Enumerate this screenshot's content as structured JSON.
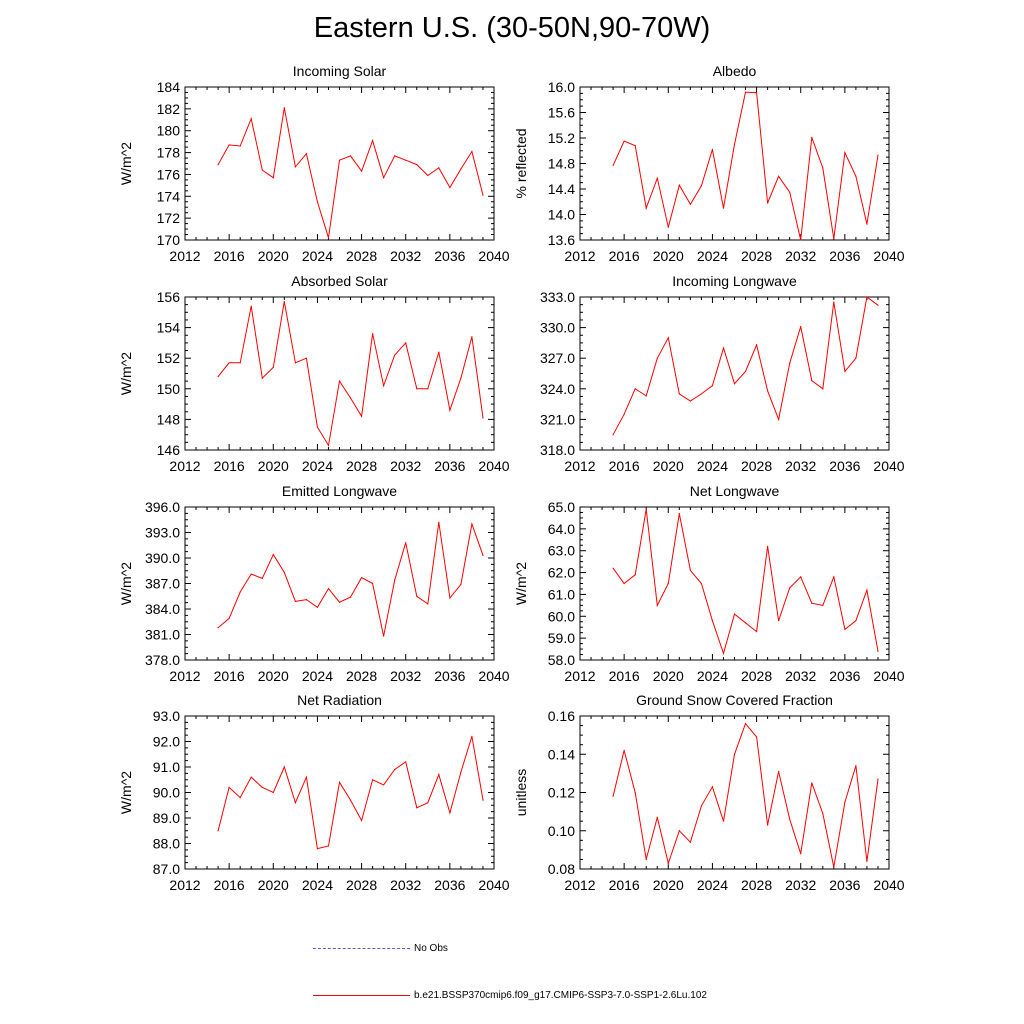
{
  "title": "Eastern U.S. (30-50N,90-70W)",
  "colors": {
    "series": "#ff0000",
    "obs": "#5a5ad2",
    "axis": "#000000"
  },
  "chart_data": [
    {
      "type": "line",
      "title": "Incoming Solar",
      "ylabel": "W/m^2",
      "xlim": [
        2012,
        2040
      ],
      "xticks": [
        2012,
        2016,
        2020,
        2024,
        2028,
        2032,
        2036,
        2040
      ],
      "ylim": [
        170,
        184
      ],
      "yticks": [
        170,
        172,
        174,
        176,
        178,
        180,
        182,
        184
      ],
      "ytick_decimals": 0,
      "ytick_labels": [
        "170",
        "172",
        "174",
        "176",
        "178",
        "180",
        "182",
        "184"
      ],
      "x": [
        2015,
        2016,
        2017,
        2018,
        2019,
        2020,
        2021,
        2022,
        2023,
        2024,
        2025,
        2026,
        2027,
        2028,
        2029,
        2030,
        2031,
        2032,
        2033,
        2034,
        2035,
        2036,
        2037,
        2038,
        2039
      ],
      "y": [
        176.9,
        178.7,
        178.6,
        181.1,
        176.4,
        175.7,
        182.1,
        176.7,
        177.9,
        173.5,
        170.2,
        177.3,
        177.7,
        176.3,
        179.1,
        175.7,
        177.7,
        177.3,
        176.9,
        175.9,
        176.6,
        174.8,
        176.5,
        178.1,
        174.1
      ]
    },
    {
      "type": "line",
      "title": "Albedo",
      "ylabel": "% reflected",
      "xlim": [
        2012,
        2040
      ],
      "xticks": [
        2012,
        2016,
        2020,
        2024,
        2028,
        2032,
        2036,
        2040
      ],
      "ylim": [
        13.6,
        16.0
      ],
      "yticks": [
        13.6,
        14.0,
        14.4,
        14.8,
        15.2,
        15.6,
        16.0
      ],
      "ytick_decimals": 1,
      "ytick_labels": [
        "13.6",
        "14.0",
        "14.4",
        "14.8",
        "15.2",
        "15.6",
        "16.0"
      ],
      "x": [
        2015,
        2016,
        2017,
        2018,
        2019,
        2020,
        2021,
        2022,
        2023,
        2024,
        2025,
        2026,
        2027,
        2028,
        2029,
        2030,
        2031,
        2032,
        2033,
        2034,
        2035,
        2036,
        2037,
        2038,
        2039
      ],
      "y": [
        14.77,
        15.15,
        15.08,
        14.1,
        14.57,
        13.8,
        14.46,
        14.16,
        14.45,
        15.02,
        14.1,
        15.1,
        15.92,
        15.91,
        14.18,
        14.6,
        14.35,
        13.6,
        15.21,
        14.73,
        13.62,
        14.97,
        14.6,
        13.85,
        14.93
      ]
    },
    {
      "type": "line",
      "title": "Absorbed Solar",
      "ylabel": "W/m^2",
      "xlim": [
        2012,
        2040
      ],
      "xticks": [
        2012,
        2016,
        2020,
        2024,
        2028,
        2032,
        2036,
        2040
      ],
      "ylim": [
        146,
        156
      ],
      "yticks": [
        146,
        148,
        150,
        152,
        154,
        156
      ],
      "ytick_decimals": 0,
      "ytick_labels": [
        "146",
        "148",
        "150",
        "152",
        "154",
        "156"
      ],
      "x": [
        2015,
        2016,
        2017,
        2018,
        2019,
        2020,
        2021,
        2022,
        2023,
        2024,
        2025,
        2026,
        2027,
        2028,
        2029,
        2030,
        2031,
        2032,
        2033,
        2034,
        2035,
        2036,
        2037,
        2038,
        2039
      ],
      "y": [
        150.8,
        151.7,
        151.7,
        155.4,
        150.7,
        151.4,
        155.7,
        151.7,
        152.0,
        147.5,
        146.3,
        150.5,
        149.4,
        148.2,
        153.6,
        150.2,
        152.2,
        153.0,
        150.0,
        150.0,
        152.4,
        148.6,
        150.7,
        153.4,
        148.1
      ]
    },
    {
      "type": "line",
      "title": "Incoming Longwave",
      "ylabel": "",
      "xlim": [
        2012,
        2040
      ],
      "xticks": [
        2012,
        2016,
        2020,
        2024,
        2028,
        2032,
        2036,
        2040
      ],
      "ylim": [
        318,
        333
      ],
      "yticks": [
        318,
        321,
        324,
        327,
        330,
        333
      ],
      "ytick_decimals": 1,
      "ytick_labels": [
        "318.0",
        "321.0",
        "324.0",
        "327.0",
        "330.0",
        "333.0"
      ],
      "x": [
        2015,
        2016,
        2017,
        2018,
        2019,
        2020,
        2021,
        2022,
        2023,
        2024,
        2025,
        2026,
        2027,
        2028,
        2029,
        2030,
        2031,
        2032,
        2033,
        2034,
        2035,
        2036,
        2037,
        2038,
        2039
      ],
      "y": [
        319.5,
        321.5,
        324.0,
        323.3,
        327.0,
        329.0,
        323.5,
        322.8,
        323.5,
        324.3,
        328.0,
        324.5,
        325.7,
        328.3,
        323.8,
        321.0,
        326.5,
        330.1,
        324.8,
        324.0,
        332.5,
        325.7,
        327.0,
        333.0,
        332.2
      ]
    },
    {
      "type": "line",
      "title": "Emitted Longwave",
      "ylabel": "W/m^2",
      "xlim": [
        2012,
        2040
      ],
      "xticks": [
        2012,
        2016,
        2020,
        2024,
        2028,
        2032,
        2036,
        2040
      ],
      "ylim": [
        378,
        396
      ],
      "yticks": [
        378,
        381,
        384,
        387,
        390,
        393,
        396
      ],
      "ytick_decimals": 1,
      "ytick_labels": [
        "378.0",
        "381.0",
        "384.0",
        "387.0",
        "390.0",
        "393.0",
        "396.0"
      ],
      "x": [
        2015,
        2016,
        2017,
        2018,
        2019,
        2020,
        2021,
        2022,
        2023,
        2024,
        2025,
        2026,
        2027,
        2028,
        2029,
        2030,
        2031,
        2032,
        2033,
        2034,
        2035,
        2036,
        2037,
        2038,
        2039
      ],
      "y": [
        381.8,
        382.9,
        386.0,
        388.1,
        387.6,
        390.4,
        388.3,
        384.9,
        385.1,
        384.2,
        386.4,
        384.8,
        385.4,
        387.7,
        387.0,
        380.8,
        387.4,
        391.8,
        385.5,
        384.6,
        394.2,
        385.3,
        386.9,
        394.0,
        390.3
      ]
    },
    {
      "type": "line",
      "title": "Net Longwave",
      "ylabel": "W/m^2",
      "xlim": [
        2012,
        2040
      ],
      "xticks": [
        2012,
        2016,
        2020,
        2024,
        2028,
        2032,
        2036,
        2040
      ],
      "ylim": [
        58,
        65
      ],
      "yticks": [
        58,
        59,
        60,
        61,
        62,
        63,
        64,
        65
      ],
      "ytick_decimals": 1,
      "ytick_labels": [
        "58.0",
        "59.0",
        "60.0",
        "61.0",
        "62.0",
        "63.0",
        "64.0",
        "65.0"
      ],
      "x": [
        2015,
        2016,
        2017,
        2018,
        2019,
        2020,
        2021,
        2022,
        2023,
        2024,
        2025,
        2026,
        2027,
        2028,
        2029,
        2030,
        2031,
        2032,
        2033,
        2034,
        2035,
        2036,
        2037,
        2038,
        2039
      ],
      "y": [
        62.2,
        61.5,
        61.9,
        64.9,
        60.5,
        61.5,
        64.7,
        62.1,
        61.5,
        59.8,
        58.3,
        60.1,
        59.7,
        59.3,
        63.2,
        59.8,
        61.3,
        61.8,
        60.6,
        60.5,
        61.8,
        59.4,
        59.8,
        61.2,
        58.4
      ]
    },
    {
      "type": "line",
      "title": "Net Radiation",
      "ylabel": "W/m^2",
      "xlim": [
        2012,
        2040
      ],
      "xticks": [
        2012,
        2016,
        2020,
        2024,
        2028,
        2032,
        2036,
        2040
      ],
      "ylim": [
        87,
        93
      ],
      "yticks": [
        87,
        88,
        89,
        90,
        91,
        92,
        93
      ],
      "ytick_decimals": 1,
      "ytick_labels": [
        "87.0",
        "88.0",
        "89.0",
        "90.0",
        "91.0",
        "92.0",
        "93.0"
      ],
      "x": [
        2015,
        2016,
        2017,
        2018,
        2019,
        2020,
        2021,
        2022,
        2023,
        2024,
        2025,
        2026,
        2027,
        2028,
        2029,
        2030,
        2031,
        2032,
        2033,
        2034,
        2035,
        2036,
        2037,
        2038,
        2039
      ],
      "y": [
        88.5,
        90.2,
        89.8,
        90.6,
        90.2,
        90.0,
        91.0,
        89.6,
        90.6,
        87.8,
        87.9,
        90.4,
        89.7,
        88.9,
        90.5,
        90.3,
        90.9,
        91.2,
        89.4,
        89.6,
        90.7,
        89.2,
        90.8,
        92.2,
        89.7
      ]
    },
    {
      "type": "line",
      "title": "Ground Snow Covered Fraction",
      "ylabel": "unitless",
      "xlim": [
        2012,
        2040
      ],
      "xticks": [
        2012,
        2016,
        2020,
        2024,
        2028,
        2032,
        2036,
        2040
      ],
      "ylim": [
        0.08,
        0.16
      ],
      "yticks": [
        0.08,
        0.1,
        0.12,
        0.14,
        0.16
      ],
      "ytick_decimals": 2,
      "ytick_labels": [
        "0.08",
        "0.10",
        "0.12",
        "0.14",
        "0.16"
      ],
      "x": [
        2015,
        2016,
        2017,
        2018,
        2019,
        2020,
        2021,
        2022,
        2023,
        2024,
        2025,
        2026,
        2027,
        2028,
        2029,
        2030,
        2031,
        2032,
        2033,
        2034,
        2035,
        2036,
        2037,
        2038,
        2039
      ],
      "y": [
        0.118,
        0.142,
        0.12,
        0.085,
        0.107,
        0.083,
        0.1,
        0.094,
        0.113,
        0.123,
        0.105,
        0.14,
        0.156,
        0.149,
        0.103,
        0.131,
        0.106,
        0.088,
        0.125,
        0.109,
        0.081,
        0.115,
        0.134,
        0.084,
        0.127
      ]
    }
  ],
  "legend": [
    {
      "label": "No Obs",
      "style": "dashed"
    },
    {
      "label": "b.e21.BSSP370cmip6.f09_g17.CMIP6-SSP3-7.0-SSP1-2.6Lu.102",
      "style": "solid"
    }
  ]
}
